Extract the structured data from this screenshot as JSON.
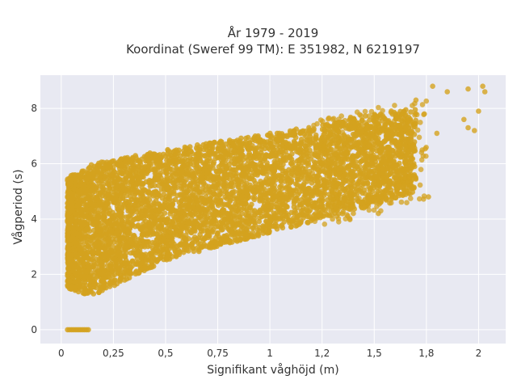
{
  "chart_data": {
    "type": "scatter",
    "title_line1": "År 1979 - 2019",
    "title_line2": "Koordinat (Sweref 99 TM): E 351982, N 6219197",
    "xlabel": "Signifikant våghöjd (m)",
    "ylabel": "Vågperiod (s)",
    "xlim": [
      -0.1,
      2.13
    ],
    "ylim": [
      -0.5,
      9.2
    ],
    "x_ticks": [
      0,
      0.25,
      0.5,
      0.75,
      1,
      1.25,
      1.5,
      1.75,
      2
    ],
    "x_tick_labels": [
      "0",
      "0,25",
      "0,5",
      "0,75",
      "1",
      "1,2",
      "1,5",
      "1,8",
      "2"
    ],
    "y_ticks": [
      0,
      2,
      4,
      6,
      8
    ],
    "y_tick_labels": [
      "0",
      "2",
      "4",
      "6",
      "8"
    ],
    "grid": true,
    "legend": "none",
    "marker_color": "#D4A21E",
    "plot_bg": "#E8E9F2",
    "bands": [
      {
        "x": [
          0.03,
          0.15,
          0.5,
          0.75,
          1.0,
          1.25,
          1.5,
          1.7
        ],
        "y_low": [
          1.5,
          1.2,
          2.5,
          3.0,
          3.5,
          4.0,
          4.5,
          5.0
        ],
        "y_high": [
          5.5,
          6.0,
          6.5,
          6.8,
          7.1,
          7.4,
          7.8,
          8.0
        ]
      }
    ],
    "outliers": [
      {
        "x": 1.78,
        "y": 8.8
      },
      {
        "x": 1.85,
        "y": 8.6
      },
      {
        "x": 1.95,
        "y": 8.7
      },
      {
        "x": 2.02,
        "y": 8.8
      },
      {
        "x": 2.03,
        "y": 8.6
      },
      {
        "x": 1.7,
        "y": 8.3
      },
      {
        "x": 1.74,
        "y": 7.8
      },
      {
        "x": 1.93,
        "y": 7.6
      },
      {
        "x": 1.95,
        "y": 7.3
      },
      {
        "x": 2.0,
        "y": 7.9
      },
      {
        "x": 1.98,
        "y": 7.2
      },
      {
        "x": 1.8,
        "y": 7.1
      },
      {
        "x": 1.76,
        "y": 4.8
      },
      {
        "x": 1.63,
        "y": 4.9
      },
      {
        "x": 1.62,
        "y": 5.2
      },
      {
        "x": 1.52,
        "y": 4.2
      },
      {
        "x": 1.45,
        "y": 4.4
      },
      {
        "x": 1.4,
        "y": 4.2
      },
      {
        "x": 1.56,
        "y": 5.5
      },
      {
        "x": 1.62,
        "y": 6.7
      },
      {
        "x": 1.3,
        "y": 4.0
      },
      {
        "x": 1.25,
        "y": 4.3
      },
      {
        "x": 1.48,
        "y": 6.6
      },
      {
        "x": 1.55,
        "y": 6.8
      }
    ],
    "zero_row": {
      "x_from": 0.03,
      "x_to": 0.13,
      "y": 0
    }
  }
}
